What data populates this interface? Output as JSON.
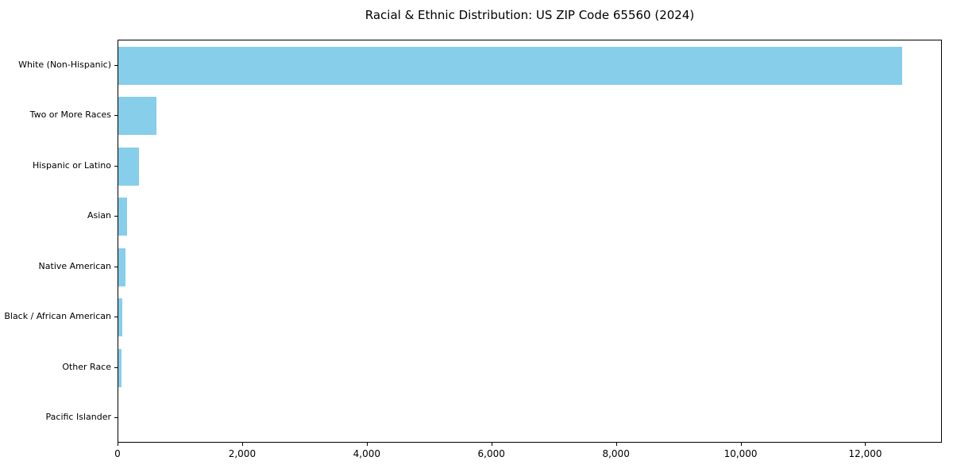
{
  "chart_data": {
    "type": "bar",
    "orientation": "horizontal",
    "title": "Racial & Ethnic Distribution: US ZIP Code 65560 (2024)",
    "categories": [
      "White (Non-Hispanic)",
      "Two or More Races",
      "Hispanic or Latino",
      "Asian",
      "Native American",
      "Black / African American",
      "Other Race",
      "Pacific Islander"
    ],
    "values": [
      12600,
      610,
      335,
      135,
      110,
      60,
      45,
      0
    ],
    "xlabel": "",
    "ylabel": "",
    "xlim": [
      0,
      13230
    ],
    "x_ticks": [
      0,
      2000,
      4000,
      6000,
      8000,
      10000,
      12000
    ],
    "x_tick_labels": [
      "0",
      "2,000",
      "4,000",
      "6,000",
      "8,000",
      "10,000",
      "12,000"
    ],
    "bar_color": "#87CEEB",
    "axis_color": "#000000",
    "background_color": "#ffffff",
    "grid": false,
    "legend": "none"
  }
}
